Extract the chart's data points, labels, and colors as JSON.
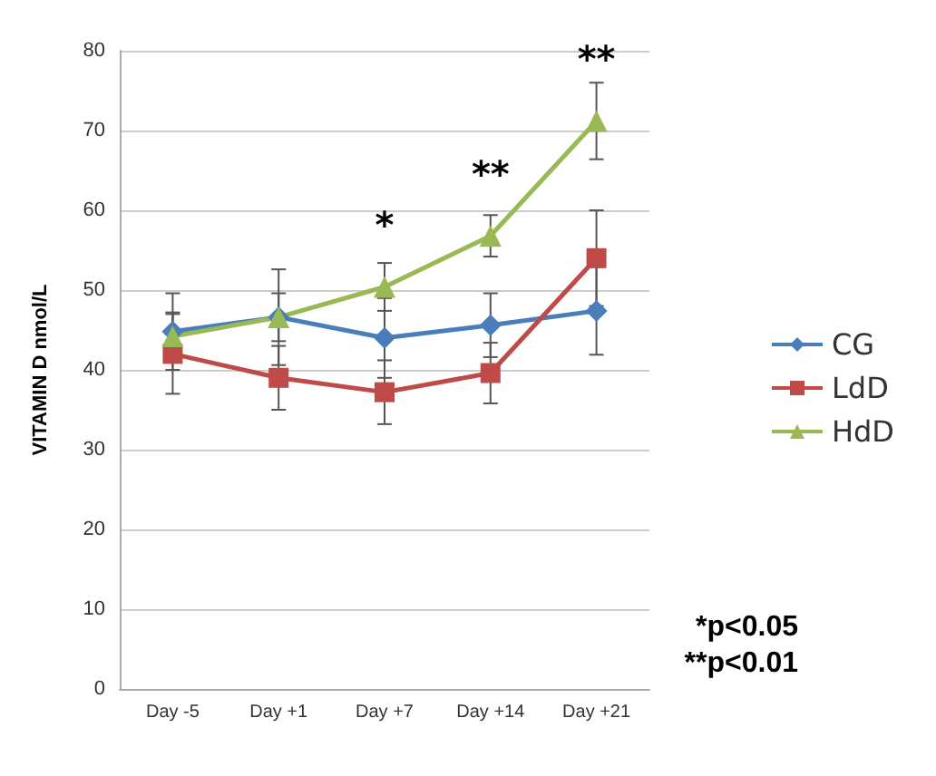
{
  "chart_data": {
    "type": "line",
    "ylabel": "VITAMIN D nmol/L",
    "categories": [
      "Day -5",
      "Day +1",
      "Day +7",
      "Day +14",
      "Day +21"
    ],
    "series": [
      {
        "name": "CG",
        "color": "#4a7ebb",
        "marker": "diamond",
        "values": [
          44.8,
          46.6,
          44.0,
          45.6,
          47.4
        ],
        "errors": [
          4.8,
          6,
          5,
          4,
          5.5
        ]
      },
      {
        "name": "LdD",
        "color": "#be4b48",
        "marker": "square",
        "values": [
          42,
          39,
          37.2,
          39.6,
          54
        ],
        "errors": [
          5,
          4,
          4,
          3.8,
          6
        ]
      },
      {
        "name": "HdD",
        "color": "#98b954",
        "marker": "triangle",
        "values": [
          44.2,
          46.6,
          50.4,
          56.8,
          71.2
        ],
        "errors": [
          3,
          3,
          3,
          2.6,
          4.8
        ]
      }
    ],
    "ylim": [
      0,
      80
    ],
    "yticks": [
      0,
      10,
      20,
      30,
      40,
      50,
      60,
      70,
      80
    ],
    "grid": "y",
    "legend": "right",
    "annotations": [
      {
        "text": "*",
        "x": "Day +7",
        "y": 50.4
      },
      {
        "text": "**",
        "x": "Day +14",
        "y": 56.8
      },
      {
        "text": "**",
        "x": "Day +21",
        "y": 71.2
      },
      "*p<0.05",
      "**p<0.01"
    ]
  }
}
